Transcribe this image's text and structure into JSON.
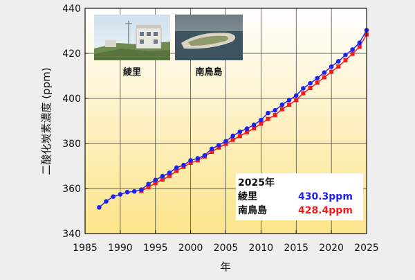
{
  "chart_data": {
    "type": "line",
    "title": "",
    "xlabel": "年",
    "ylabel": "二酸化炭素濃度 (ppm)",
    "xlim": [
      1985,
      2025
    ],
    "ylim": [
      340,
      440
    ],
    "xticks": [
      1985,
      1990,
      1995,
      2000,
      2005,
      2010,
      2015,
      2020,
      2025
    ],
    "yticks": [
      340,
      360,
      380,
      400,
      420,
      440
    ],
    "grid": true,
    "colors": {
      "ryori": "#1e24ee",
      "minamitorishima": "#ee1c1c",
      "background_top": "#ffffff",
      "background_bottom": "#fbe48a"
    },
    "series": [
      {
        "name": "綾里",
        "marker": "circle",
        "x": [
          1987,
          1988,
          1989,
          1990,
          1991,
          1992,
          1993,
          1994,
          1995,
          1996,
          1997,
          1998,
          1999,
          2000,
          2001,
          2002,
          2003,
          2004,
          2005,
          2006,
          2007,
          2008,
          2009,
          2010,
          2011,
          2012,
          2013,
          2014,
          2015,
          2016,
          2017,
          2018,
          2019,
          2020,
          2021,
          2022,
          2023,
          2024,
          2025
        ],
        "values": [
          351.6,
          354.3,
          356.4,
          357.4,
          358.4,
          358.7,
          359.5,
          362.0,
          363.8,
          365.5,
          367.0,
          369.3,
          370.4,
          372.5,
          373.4,
          374.7,
          377.6,
          379.3,
          381.0,
          383.4,
          385.2,
          386.6,
          388.3,
          390.4,
          393.5,
          394.7,
          397.2,
          399.3,
          401.3,
          404.5,
          406.7,
          409.0,
          411.5,
          414.1,
          416.5,
          419.3,
          421.7,
          424.7,
          430.3
        ]
      },
      {
        "name": "南鳥島",
        "marker": "square",
        "x": [
          1993,
          1994,
          1995,
          1996,
          1997,
          1998,
          1999,
          2000,
          2001,
          2002,
          2003,
          2004,
          2005,
          2006,
          2007,
          2008,
          2009,
          2010,
          2011,
          2012,
          2013,
          2014,
          2015,
          2016,
          2017,
          2018,
          2019,
          2020,
          2021,
          2022,
          2023,
          2024,
          2025
        ],
        "values": [
          358.9,
          360.6,
          362.4,
          364.0,
          365.6,
          367.8,
          369.6,
          371.4,
          372.5,
          374.2,
          376.3,
          378.2,
          379.8,
          381.6,
          383.3,
          385.0,
          386.7,
          388.8,
          390.9,
          392.6,
          395.2,
          397.2,
          399.3,
          402.3,
          404.6,
          407.0,
          409.4,
          411.8,
          414.2,
          416.9,
          419.8,
          422.9,
          428.4
        ]
      }
    ],
    "photos": [
      {
        "label": "綾里"
      },
      {
        "label": "南鳥島"
      }
    ],
    "annotation": {
      "year": "2025年",
      "rows": [
        {
          "site": "綾里",
          "value": "430.3ppm",
          "color": "#1e24ee"
        },
        {
          "site": "南鳥島",
          "value": "428.4ppm",
          "color": "#ee1c1c"
        }
      ]
    }
  }
}
